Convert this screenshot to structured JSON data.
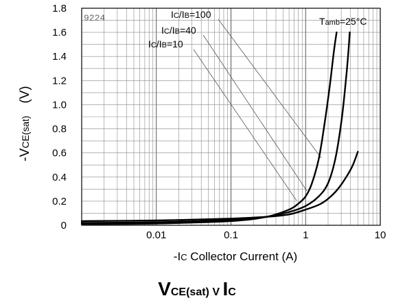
{
  "chart_data": {
    "type": "line",
    "x_scale": "log",
    "xlim": [
      0.001,
      10
    ],
    "ylim": [
      0,
      1.8
    ],
    "x_ticks": [
      {
        "value": 0.01,
        "label": "0.01"
      },
      {
        "value": 0.1,
        "label": "0.1"
      },
      {
        "value": 1,
        "label": "1"
      },
      {
        "value": 10,
        "label": "10"
      }
    ],
    "y_ticks": [
      {
        "value": 0,
        "label": "0"
      },
      {
        "value": 0.2,
        "label": "0.2"
      },
      {
        "value": 0.4,
        "label": "0.4"
      },
      {
        "value": 0.6,
        "label": "0.6"
      },
      {
        "value": 0.8,
        "label": "0.8"
      },
      {
        "value": 1.0,
        "label": "1.0"
      },
      {
        "value": 1.2,
        "label": "1.2"
      },
      {
        "value": 1.4,
        "label": "1.4"
      },
      {
        "value": 1.6,
        "label": "1.6"
      },
      {
        "value": 1.8,
        "label": "1.8"
      }
    ],
    "grid": true,
    "figure_code": "9224",
    "condition": {
      "main": "T",
      "sub": "amb",
      "rest": "=25°C"
    },
    "xlabel": {
      "pre": "-I",
      "sub": "C",
      "post": " Collector Current (A)"
    },
    "ylabel": {
      "pre": "-V",
      "sub": "CE(sat)",
      "post": "(V)"
    },
    "title": {
      "v": "V",
      "vsub": "CE(sat)",
      "mid": " V ",
      "i": "I",
      "isub": "C"
    },
    "series": [
      {
        "name": {
          "a": "I",
          "asub": "C",
          "slash": "/I",
          "bsub": "B",
          "value": "=100"
        },
        "x": [
          0.001,
          0.01,
          0.1,
          0.3,
          0.6,
          0.8,
          1.0,
          1.2,
          1.5,
          1.8,
          2.1,
          2.4,
          2.6
        ],
        "y": [
          0.01,
          0.015,
          0.035,
          0.07,
          0.13,
          0.18,
          0.24,
          0.34,
          0.55,
          0.85,
          1.15,
          1.45,
          1.6
        ]
      },
      {
        "name": {
          "a": "I",
          "asub": "C",
          "slash": "/I",
          "bsub": "B",
          "value": "=40"
        },
        "x": [
          0.001,
          0.01,
          0.1,
          0.3,
          0.6,
          1.0,
          1.5,
          2.0,
          2.5,
          3.0,
          3.4,
          3.7,
          3.9
        ],
        "y": [
          0.02,
          0.025,
          0.045,
          0.07,
          0.11,
          0.16,
          0.24,
          0.35,
          0.55,
          0.85,
          1.15,
          1.4,
          1.6
        ]
      },
      {
        "name": {
          "a": "I",
          "asub": "C",
          "slash": "/I",
          "bsub": "B",
          "value": "=10"
        },
        "x": [
          0.001,
          0.01,
          0.1,
          0.3,
          0.6,
          1.0,
          1.5,
          2.0,
          2.7,
          3.5,
          4.3,
          5.0
        ],
        "y": [
          0.035,
          0.04,
          0.055,
          0.07,
          0.09,
          0.13,
          0.17,
          0.22,
          0.3,
          0.4,
          0.5,
          0.61
        ]
      }
    ]
  }
}
